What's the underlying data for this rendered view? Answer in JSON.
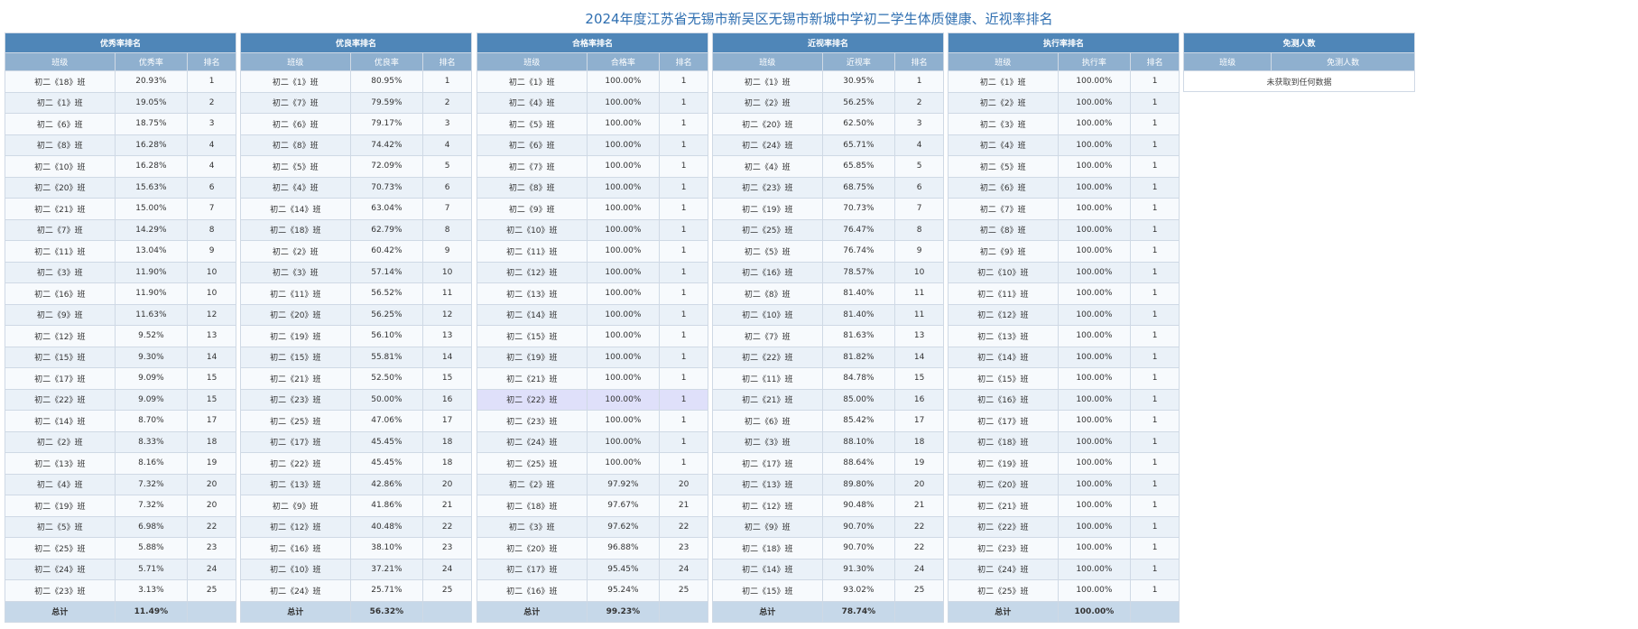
{
  "title": "2024年度江苏省无锡市新吴区无锡市新城中学初二学生体质健康、近视率排名",
  "panels": [
    {
      "title": "优秀率排名",
      "headers": [
        "班级",
        "优秀率",
        "排名"
      ],
      "rows": [
        [
          "初二《18》班",
          "20.93%",
          "1"
        ],
        [
          "初二《1》班",
          "19.05%",
          "2"
        ],
        [
          "初二《6》班",
          "18.75%",
          "3"
        ],
        [
          "初二《8》班",
          "16.28%",
          "4"
        ],
        [
          "初二《10》班",
          "16.28%",
          "4"
        ],
        [
          "初二《20》班",
          "15.63%",
          "6"
        ],
        [
          "初二《21》班",
          "15.00%",
          "7"
        ],
        [
          "初二《7》班",
          "14.29%",
          "8"
        ],
        [
          "初二《11》班",
          "13.04%",
          "9"
        ],
        [
          "初二《3》班",
          "11.90%",
          "10"
        ],
        [
          "初二《16》班",
          "11.90%",
          "10"
        ],
        [
          "初二《9》班",
          "11.63%",
          "12"
        ],
        [
          "初二《12》班",
          "9.52%",
          "13"
        ],
        [
          "初二《15》班",
          "9.30%",
          "14"
        ],
        [
          "初二《17》班",
          "9.09%",
          "15"
        ],
        [
          "初二《22》班",
          "9.09%",
          "15"
        ],
        [
          "初二《14》班",
          "8.70%",
          "17"
        ],
        [
          "初二《2》班",
          "8.33%",
          "18"
        ],
        [
          "初二《13》班",
          "8.16%",
          "19"
        ],
        [
          "初二《4》班",
          "7.32%",
          "20"
        ],
        [
          "初二《19》班",
          "7.32%",
          "20"
        ],
        [
          "初二《5》班",
          "6.98%",
          "22"
        ],
        [
          "初二《25》班",
          "5.88%",
          "23"
        ],
        [
          "初二《24》班",
          "5.71%",
          "24"
        ],
        [
          "初二《23》班",
          "3.13%",
          "25"
        ]
      ],
      "total": [
        "总计",
        "11.49%",
        ""
      ]
    },
    {
      "title": "优良率排名",
      "headers": [
        "班级",
        "优良率",
        "排名"
      ],
      "rows": [
        [
          "初二《1》班",
          "80.95%",
          "1"
        ],
        [
          "初二《7》班",
          "79.59%",
          "2"
        ],
        [
          "初二《6》班",
          "79.17%",
          "3"
        ],
        [
          "初二《8》班",
          "74.42%",
          "4"
        ],
        [
          "初二《5》班",
          "72.09%",
          "5"
        ],
        [
          "初二《4》班",
          "70.73%",
          "6"
        ],
        [
          "初二《14》班",
          "63.04%",
          "7"
        ],
        [
          "初二《18》班",
          "62.79%",
          "8"
        ],
        [
          "初二《2》班",
          "60.42%",
          "9"
        ],
        [
          "初二《3》班",
          "57.14%",
          "10"
        ],
        [
          "初二《11》班",
          "56.52%",
          "11"
        ],
        [
          "初二《20》班",
          "56.25%",
          "12"
        ],
        [
          "初二《19》班",
          "56.10%",
          "13"
        ],
        [
          "初二《15》班",
          "55.81%",
          "14"
        ],
        [
          "初二《21》班",
          "52.50%",
          "15"
        ],
        [
          "初二《23》班",
          "50.00%",
          "16"
        ],
        [
          "初二《25》班",
          "47.06%",
          "17"
        ],
        [
          "初二《17》班",
          "45.45%",
          "18"
        ],
        [
          "初二《22》班",
          "45.45%",
          "18"
        ],
        [
          "初二《13》班",
          "42.86%",
          "20"
        ],
        [
          "初二《9》班",
          "41.86%",
          "21"
        ],
        [
          "初二《12》班",
          "40.48%",
          "22"
        ],
        [
          "初二《16》班",
          "38.10%",
          "23"
        ],
        [
          "初二《10》班",
          "37.21%",
          "24"
        ],
        [
          "初二《24》班",
          "25.71%",
          "25"
        ]
      ],
      "total": [
        "总计",
        "56.32%",
        ""
      ]
    },
    {
      "title": "合格率排名",
      "headers": [
        "班级",
        "合格率",
        "排名"
      ],
      "rows": [
        [
          "初二《1》班",
          "100.00%",
          "1"
        ],
        [
          "初二《4》班",
          "100.00%",
          "1"
        ],
        [
          "初二《5》班",
          "100.00%",
          "1"
        ],
        [
          "初二《6》班",
          "100.00%",
          "1"
        ],
        [
          "初二《7》班",
          "100.00%",
          "1"
        ],
        [
          "初二《8》班",
          "100.00%",
          "1"
        ],
        [
          "初二《9》班",
          "100.00%",
          "1"
        ],
        [
          "初二《10》班",
          "100.00%",
          "1"
        ],
        [
          "初二《11》班",
          "100.00%",
          "1"
        ],
        [
          "初二《12》班",
          "100.00%",
          "1"
        ],
        [
          "初二《13》班",
          "100.00%",
          "1"
        ],
        [
          "初二《14》班",
          "100.00%",
          "1"
        ],
        [
          "初二《15》班",
          "100.00%",
          "1"
        ],
        [
          "初二《19》班",
          "100.00%",
          "1"
        ],
        [
          "初二《21》班",
          "100.00%",
          "1"
        ],
        [
          "初二《22》班",
          "100.00%",
          "1"
        ],
        [
          "初二《23》班",
          "100.00%",
          "1"
        ],
        [
          "初二《24》班",
          "100.00%",
          "1"
        ],
        [
          "初二《25》班",
          "100.00%",
          "1"
        ],
        [
          "初二《2》班",
          "97.92%",
          "20"
        ],
        [
          "初二《18》班",
          "97.67%",
          "21"
        ],
        [
          "初二《3》班",
          "97.62%",
          "22"
        ],
        [
          "初二《20》班",
          "96.88%",
          "23"
        ],
        [
          "初二《17》班",
          "95.45%",
          "24"
        ],
        [
          "初二《16》班",
          "95.24%",
          "25"
        ]
      ],
      "total": [
        "总计",
        "99.23%",
        ""
      ],
      "highlight_row": 15
    },
    {
      "title": "近视率排名",
      "headers": [
        "班级",
        "近视率",
        "排名"
      ],
      "rows": [
        [
          "初二《1》班",
          "30.95%",
          "1"
        ],
        [
          "初二《2》班",
          "56.25%",
          "2"
        ],
        [
          "初二《20》班",
          "62.50%",
          "3"
        ],
        [
          "初二《24》班",
          "65.71%",
          "4"
        ],
        [
          "初二《4》班",
          "65.85%",
          "5"
        ],
        [
          "初二《23》班",
          "68.75%",
          "6"
        ],
        [
          "初二《19》班",
          "70.73%",
          "7"
        ],
        [
          "初二《25》班",
          "76.47%",
          "8"
        ],
        [
          "初二《5》班",
          "76.74%",
          "9"
        ],
        [
          "初二《16》班",
          "78.57%",
          "10"
        ],
        [
          "初二《8》班",
          "81.40%",
          "11"
        ],
        [
          "初二《10》班",
          "81.40%",
          "11"
        ],
        [
          "初二《7》班",
          "81.63%",
          "13"
        ],
        [
          "初二《22》班",
          "81.82%",
          "14"
        ],
        [
          "初二《11》班",
          "84.78%",
          "15"
        ],
        [
          "初二《21》班",
          "85.00%",
          "16"
        ],
        [
          "初二《6》班",
          "85.42%",
          "17"
        ],
        [
          "初二《3》班",
          "88.10%",
          "18"
        ],
        [
          "初二《17》班",
          "88.64%",
          "19"
        ],
        [
          "初二《13》班",
          "89.80%",
          "20"
        ],
        [
          "初二《12》班",
          "90.48%",
          "21"
        ],
        [
          "初二《9》班",
          "90.70%",
          "22"
        ],
        [
          "初二《18》班",
          "90.70%",
          "22"
        ],
        [
          "初二《14》班",
          "91.30%",
          "24"
        ],
        [
          "初二《15》班",
          "93.02%",
          "25"
        ]
      ],
      "total": [
        "总计",
        "78.74%",
        ""
      ]
    },
    {
      "title": "执行率排名",
      "headers": [
        "班级",
        "执行率",
        "排名"
      ],
      "rows": [
        [
          "初二《1》班",
          "100.00%",
          "1"
        ],
        [
          "初二《2》班",
          "100.00%",
          "1"
        ],
        [
          "初二《3》班",
          "100.00%",
          "1"
        ],
        [
          "初二《4》班",
          "100.00%",
          "1"
        ],
        [
          "初二《5》班",
          "100.00%",
          "1"
        ],
        [
          "初二《6》班",
          "100.00%",
          "1"
        ],
        [
          "初二《7》班",
          "100.00%",
          "1"
        ],
        [
          "初二《8》班",
          "100.00%",
          "1"
        ],
        [
          "初二《9》班",
          "100.00%",
          "1"
        ],
        [
          "初二《10》班",
          "100.00%",
          "1"
        ],
        [
          "初二《11》班",
          "100.00%",
          "1"
        ],
        [
          "初二《12》班",
          "100.00%",
          "1"
        ],
        [
          "初二《13》班",
          "100.00%",
          "1"
        ],
        [
          "初二《14》班",
          "100.00%",
          "1"
        ],
        [
          "初二《15》班",
          "100.00%",
          "1"
        ],
        [
          "初二《16》班",
          "100.00%",
          "1"
        ],
        [
          "初二《17》班",
          "100.00%",
          "1"
        ],
        [
          "初二《18》班",
          "100.00%",
          "1"
        ],
        [
          "初二《19》班",
          "100.00%",
          "1"
        ],
        [
          "初二《20》班",
          "100.00%",
          "1"
        ],
        [
          "初二《21》班",
          "100.00%",
          "1"
        ],
        [
          "初二《22》班",
          "100.00%",
          "1"
        ],
        [
          "初二《23》班",
          "100.00%",
          "1"
        ],
        [
          "初二《24》班",
          "100.00%",
          "1"
        ],
        [
          "初二《25》班",
          "100.00%",
          "1"
        ]
      ],
      "total": [
        "总计",
        "100.00%",
        ""
      ]
    }
  ],
  "exempt_panel": {
    "title": "免测人数",
    "headers": [
      "班级",
      "免测人数"
    ],
    "empty_text": "未获取到任何数据"
  },
  "colors": {
    "title_text": "#2f6fb1",
    "panel_header": "#4f86b8",
    "column_header": "#8fb0cf",
    "total_row": "#c6d8e9",
    "highlight_row": "#dfe0fa"
  }
}
